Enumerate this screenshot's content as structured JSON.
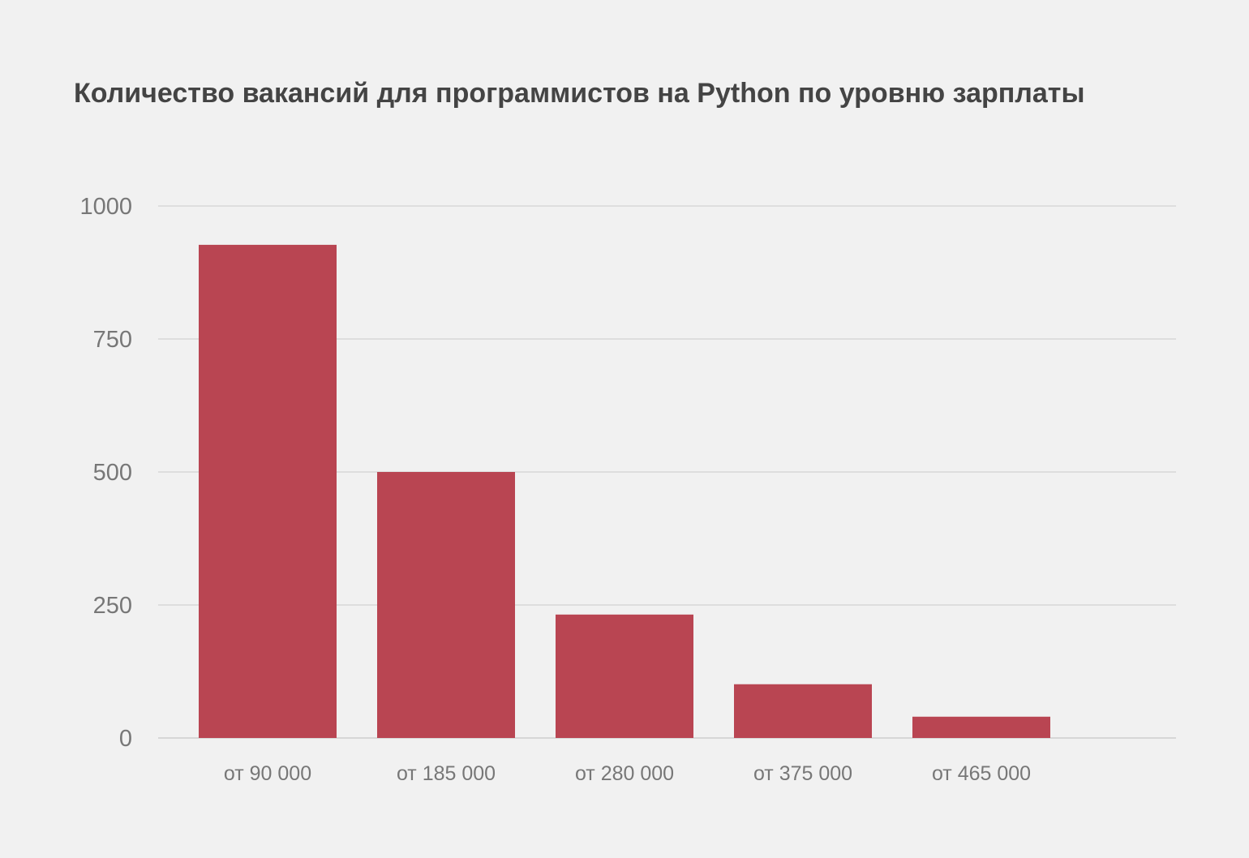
{
  "chart_data": {
    "type": "bar",
    "title": "Количество вакансий для программистов на Python по уровню зарплаты",
    "xlabel": "",
    "ylabel": "",
    "categories": [
      "от 90 000",
      "от 185 000",
      "от 280 000",
      "от 375 000",
      "от 465 000"
    ],
    "values": [
      927,
      500,
      232,
      101,
      40
    ],
    "ylim": [
      0,
      1000
    ],
    "yticks": [
      0,
      250,
      500,
      750,
      1000
    ],
    "ytick_labels": [
      "0",
      "250",
      "500",
      "750",
      "1000"
    ],
    "grid": true,
    "legend": "none"
  },
  "colors": {
    "bar": "#b94552",
    "grid": "#d3d3d3",
    "axis": "#c8c8c8",
    "title": "#444444",
    "tick": "#777777",
    "background": "#f1f1f1"
  }
}
